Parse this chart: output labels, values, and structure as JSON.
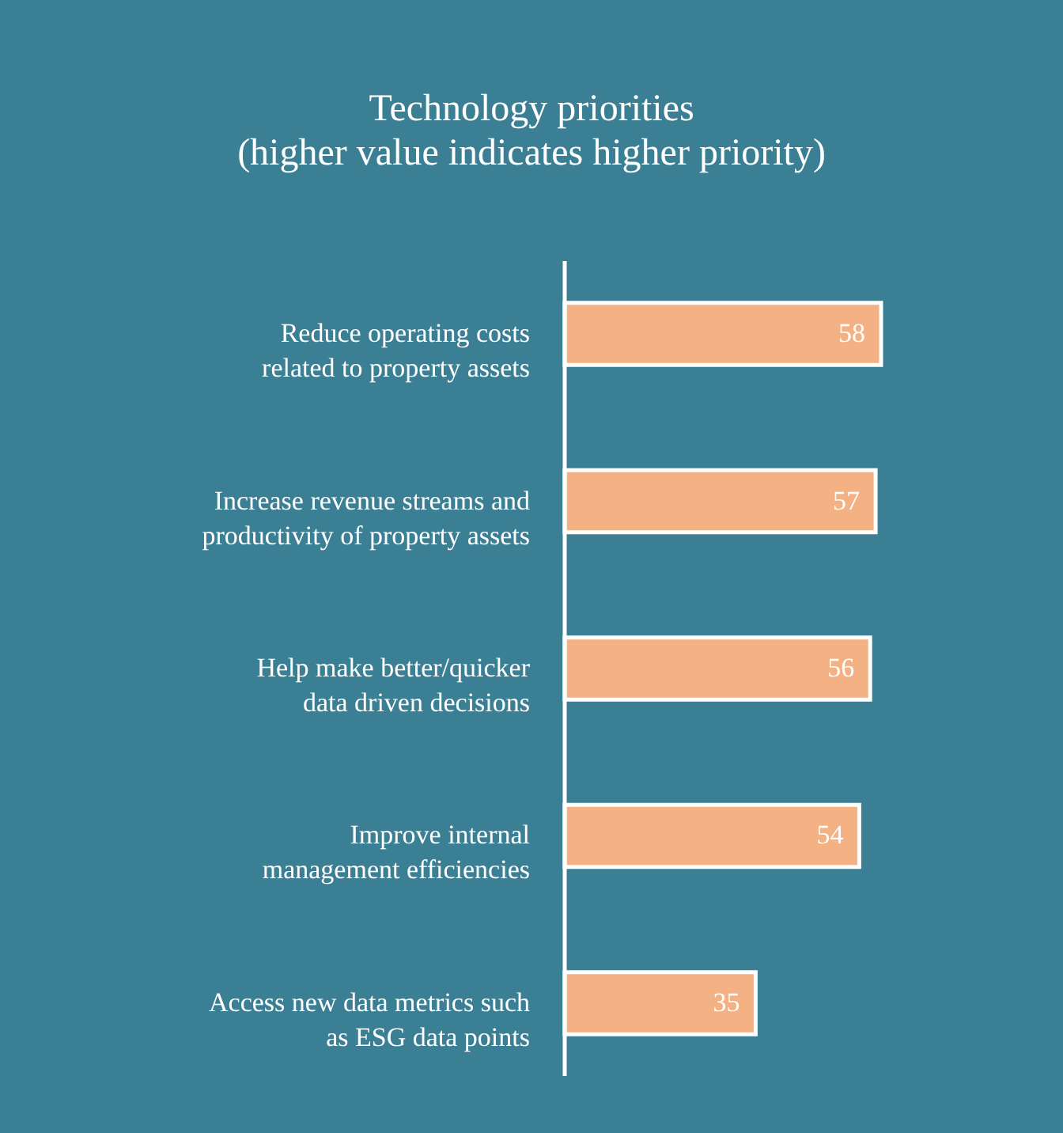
{
  "chart_data": {
    "type": "bar",
    "orientation": "horizontal",
    "title": "Technology priorities",
    "subtitle": "(higher value indicates higher priority)",
    "categories": [
      "Reduce operating costs related to property assets",
      "Increase revenue streams and productivity of property assets",
      "Help make better/quicker data driven decisions",
      "Improve internal management efficiencies",
      "Access new data metrics such as ESG data points"
    ],
    "values": [
      58,
      57,
      56,
      54,
      35
    ],
    "color": "#f4b183",
    "data_labels": true
  }
}
